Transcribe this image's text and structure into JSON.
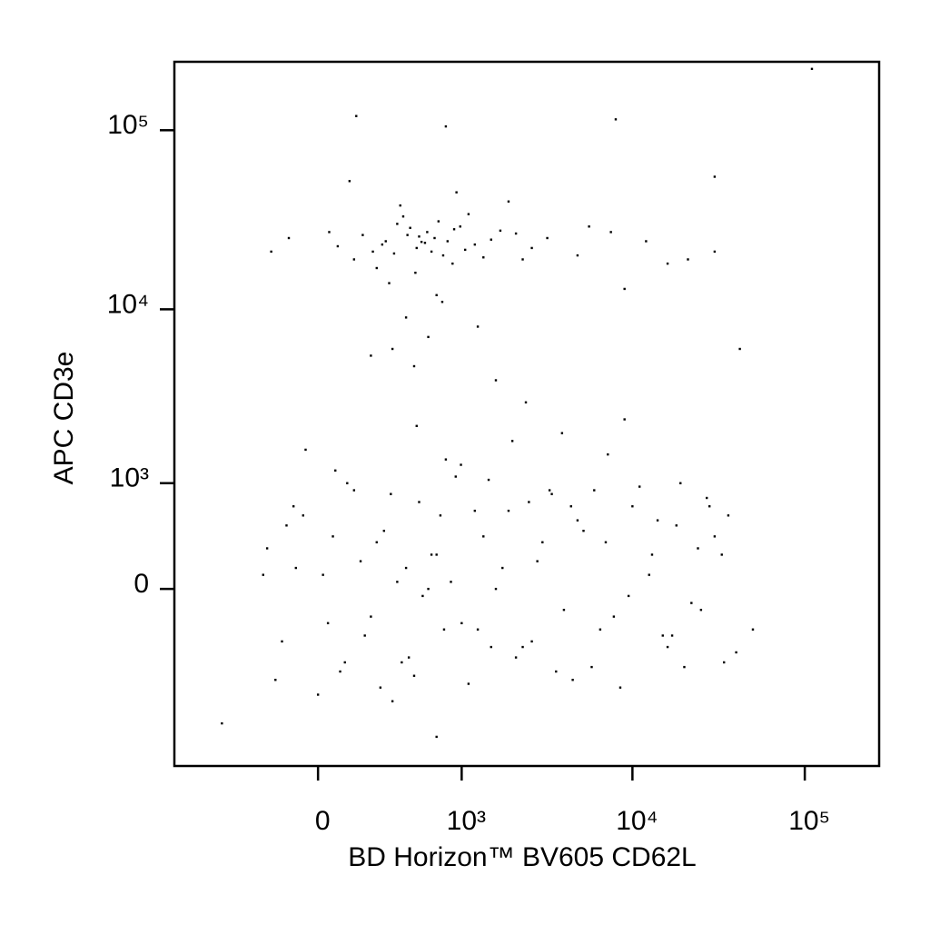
{
  "chart_data": {
    "type": "scatter",
    "xlabel": "BD Horizon™ BV605 CD62L",
    "ylabel": "APC CD3e",
    "xscale": "biexponential",
    "yscale": "biexponential",
    "xlim": [
      -1000,
      270000
    ],
    "ylim": [
      -2650,
      241000
    ],
    "xticks": [
      0,
      {
        "value": 1000,
        "label": "10³"
      },
      {
        "value": 10000,
        "label": "10⁴"
      },
      {
        "value": 100000,
        "label": "10⁵"
      }
    ],
    "yticks": [
      0,
      {
        "value": 1000,
        "label": "10³"
      },
      {
        "value": 10000,
        "label": "10⁴"
      },
      {
        "value": 100000,
        "label": "10⁵"
      }
    ],
    "color": "#000000",
    "x": [
      310,
      450,
      520,
      680,
      240,
      900,
      1200,
      380,
      150,
      610,
      770,
      1500,
      420,
      260,
      540,
      1050,
      2100,
      80,
      330,
      470,
      590,
      720,
      1350,
      190,
      880,
      2600,
      -120,
      400,
      650,
      980,
      1700,
      290,
      510,
      360,
      820,
      1100,
      45,
      700,
      2300,
      560,
      -200,
      3200,
      4800,
      7500,
      12000,
      21000,
      9000,
      5600,
      30000,
      16000,
      440,
      620,
      350,
      760,
      1250,
      230,
      500,
      930,
      130,
      1900,
      -220,
      -150,
      -60,
      20,
      90,
      150,
      230,
      300,
      380,
      460,
      540,
      650,
      780,
      920,
      1100,
      1350,
      1600,
      1900,
      2300,
      2800,
      3300,
      4000,
      4800,
      5800,
      7000,
      8500,
      10000,
      12500,
      15000,
      18000,
      22000,
      27000,
      33000,
      40000,
      -180,
      -90,
      40,
      120,
      260,
      410,
      570,
      740,
      990,
      1250,
      1750,
      2500,
      3600,
      5200,
      7800,
      11000,
      16000,
      24000,
      36000,
      -130,
      0,
      180,
      340,
      500,
      860,
      1450,
      2100,
      3000,
      4400,
      6500,
      9500,
      14000,
      20000,
      30000,
      70,
      280,
      620,
      1200,
      2600,
      6000,
      13000,
      25000,
      -240,
      200,
      800,
      3900,
      -100,
      110,
      440,
      1000,
      2000,
      4500,
      9000,
      19000,
      34000,
      60,
      350,
      700,
      1500,
      3400,
      7200,
      17000,
      28000,
      -50,
      520,
      50000,
      110000,
      8000,
      160,
      -500,
      1600,
      2400,
      800,
      30000,
      42000,
      700
    ],
    "y": [
      24000,
      26000,
      22000,
      25000,
      21000,
      28000,
      23000,
      30000,
      19000,
      27000,
      20000,
      24500,
      33000,
      17000,
      25500,
      21500,
      26500,
      22500,
      14000,
      28500,
      23500,
      31000,
      19500,
      26000,
      18000,
      22000,
      25000,
      38000,
      21000,
      29000,
      27500,
      23000,
      16000,
      20500,
      24000,
      34000,
      27000,
      12000,
      19000,
      23800,
      21000,
      25000,
      20000,
      27000,
      24000,
      19000,
      13000,
      29000,
      21000,
      18000,
      9000,
      7000,
      6000,
      11000,
      8000,
      5500,
      4800,
      45000,
      52000,
      40000,
      300,
      -400,
      600,
      100,
      -700,
      900,
      -200,
      450,
      50,
      -550,
      750,
      250,
      -300,
      1100,
      -850,
      400,
      0,
      650,
      -450,
      200,
      900,
      -150,
      550,
      -650,
      350,
      -900,
      700,
      100,
      -350,
      500,
      -100,
      800,
      250,
      -500,
      -800,
      150,
      -250,
      1000,
      350,
      -600,
      -50,
      600,
      1300,
      -300,
      150,
      750,
      -700,
      450,
      -200,
      950,
      -450,
      300,
      600,
      500,
      -1000,
      200,
      850,
      -750,
      50,
      1050,
      -550,
      350,
      700,
      -300,
      -50,
      550,
      -650,
      400,
      1200,
      -900,
      0,
      650,
      -400,
      900,
      250,
      -150,
      100,
      -350,
      1400,
      2000,
      700,
      -600,
      150,
      -250,
      1800,
      -800,
      2400,
      1000,
      -600,
      400,
      -1100,
      250,
      -450,
      850,
      1500,
      -350,
      700,
      1600,
      2200,
      -300,
      220000,
      115000,
      120000,
      -1500,
      4000,
      3000,
      105000,
      55000,
      6000,
      -1800
    ]
  }
}
